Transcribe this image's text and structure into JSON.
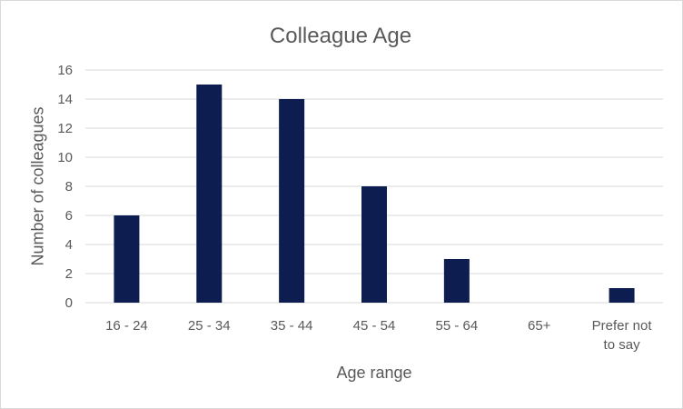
{
  "chart_data": {
    "type": "bar",
    "title": "Colleague Age",
    "xlabel": "Age range",
    "ylabel": "Number of colleagues",
    "categories": [
      "16 - 24",
      "25 - 34",
      "35 - 44",
      "45 - 54",
      "55 - 64",
      "65+",
      "Prefer not to say"
    ],
    "category_label_lines": [
      [
        "16 - 24"
      ],
      [
        "25 - 34"
      ],
      [
        "35 - 44"
      ],
      [
        "45 - 54"
      ],
      [
        "55 - 64"
      ],
      [
        "65+"
      ],
      [
        "Prefer not",
        "to say"
      ]
    ],
    "values": [
      6,
      15,
      14,
      8,
      3,
      0,
      1
    ],
    "ylim": [
      0,
      16
    ],
    "yticks": [
      0,
      2,
      4,
      6,
      8,
      10,
      12,
      14,
      16
    ],
    "grid": true,
    "legend": "none",
    "bar_color": "#0e1d4f",
    "grid_color": "#d9d9d9",
    "text_color": "#595959"
  }
}
